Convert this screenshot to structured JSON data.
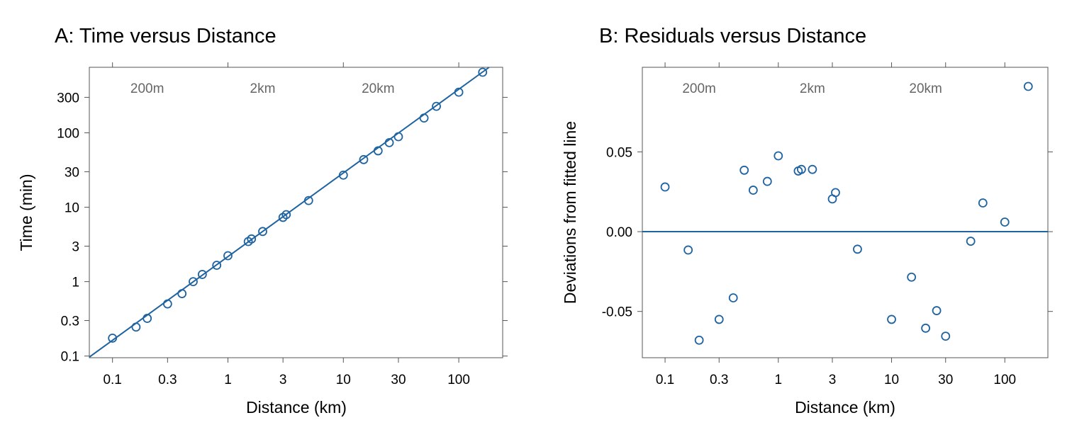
{
  "colors": {
    "series": "#1f64a0",
    "axis": "#555555",
    "annotation": "#666666"
  },
  "chart_data": [
    {
      "type": "scatter",
      "title": "A: Time versus Distance",
      "xlabel": "Distance (km)",
      "ylabel": "Time (min)",
      "xscale": "log",
      "yscale": "log",
      "xlim": [
        0.063,
        240
      ],
      "ylim": [
        0.095,
        760
      ],
      "xticks": [
        {
          "v": 0.1,
          "label": "0.1"
        },
        {
          "v": 0.3,
          "label": "0.3"
        },
        {
          "v": 1,
          "label": "1"
        },
        {
          "v": 3,
          "label": "3"
        },
        {
          "v": 10,
          "label": "10"
        },
        {
          "v": 30,
          "label": "30"
        },
        {
          "v": 100,
          "label": "100"
        }
      ],
      "yticks": [
        {
          "v": 0.1,
          "label": "0.1"
        },
        {
          "v": 0.3,
          "label": "0.3"
        },
        {
          "v": 1,
          "label": "1"
        },
        {
          "v": 3,
          "label": "3"
        },
        {
          "v": 10,
          "label": "10"
        },
        {
          "v": 30,
          "label": "30"
        },
        {
          "v": 100,
          "label": "100"
        },
        {
          "v": 300,
          "label": "300"
        }
      ],
      "top_annotations": [
        {
          "v": 0.2,
          "label": "200m"
        },
        {
          "v": 2,
          "label": "2km"
        },
        {
          "v": 20,
          "label": "20km"
        }
      ],
      "top_ticks": [
        0.1,
        1,
        10,
        100
      ],
      "fit_line": {
        "intercept_log10": 0.3364,
        "slope": 1.1245
      },
      "points": {
        "x": [
          0.1,
          0.16,
          0.2,
          0.3,
          0.4,
          0.5,
          0.6,
          0.8,
          1.0,
          1.5,
          1.6,
          2.0,
          3.0,
          3.2,
          5.0,
          10.0,
          15.0,
          20.0,
          25.0,
          30.0,
          50.0,
          64.0,
          100.0,
          161.0
        ],
        "y": [
          0.174,
          0.245,
          0.321,
          0.502,
          0.69,
          1.0,
          1.25,
          1.66,
          2.23,
          3.46,
          3.75,
          4.72,
          7.3,
          7.95,
          12.3,
          27.0,
          43.7,
          57.3,
          73.8,
          88.7,
          158.0,
          227.0,
          352.0,
          652.0
        ]
      }
    },
    {
      "type": "scatter",
      "title": "B: Residuals versus Distance",
      "xlabel": "Distance (km)",
      "ylabel": "Deviations from fitted line",
      "xscale": "log",
      "yscale": "linear",
      "xlim": [
        0.063,
        240
      ],
      "ylim": [
        -0.079,
        0.103
      ],
      "xticks": [
        {
          "v": 0.1,
          "label": "0.1"
        },
        {
          "v": 0.3,
          "label": "0.3"
        },
        {
          "v": 1,
          "label": "1"
        },
        {
          "v": 3,
          "label": "3"
        },
        {
          "v": 10,
          "label": "10"
        },
        {
          "v": 30,
          "label": "30"
        },
        {
          "v": 100,
          "label": "100"
        }
      ],
      "yticks": [
        {
          "v": -0.05,
          "label": "-0.05"
        },
        {
          "v": 0.0,
          "label": "0.00"
        },
        {
          "v": 0.05,
          "label": "0.05"
        }
      ],
      "top_annotations": [
        {
          "v": 0.2,
          "label": "200m"
        },
        {
          "v": 2,
          "label": "2km"
        },
        {
          "v": 20,
          "label": "20km"
        }
      ],
      "top_ticks": [
        0.1,
        0.3,
        1,
        3,
        10,
        30,
        100
      ],
      "reference_line": 0.0,
      "points": {
        "x": [
          0.1,
          0.16,
          0.2,
          0.3,
          0.4,
          0.5,
          0.6,
          0.8,
          1.0,
          1.5,
          1.6,
          2.0,
          3.0,
          3.2,
          5.0,
          10.0,
          15.0,
          20.0,
          25.0,
          30.0,
          50.0,
          64.0,
          100.0,
          161.0
        ],
        "y": [
          0.028,
          -0.0115,
          -0.068,
          -0.055,
          -0.0415,
          0.0385,
          0.026,
          0.0315,
          0.0475,
          0.038,
          0.039,
          0.039,
          0.0205,
          0.0245,
          -0.011,
          -0.055,
          -0.0285,
          -0.0605,
          -0.0495,
          -0.0655,
          -0.006,
          0.018,
          0.006,
          0.091
        ]
      }
    }
  ]
}
